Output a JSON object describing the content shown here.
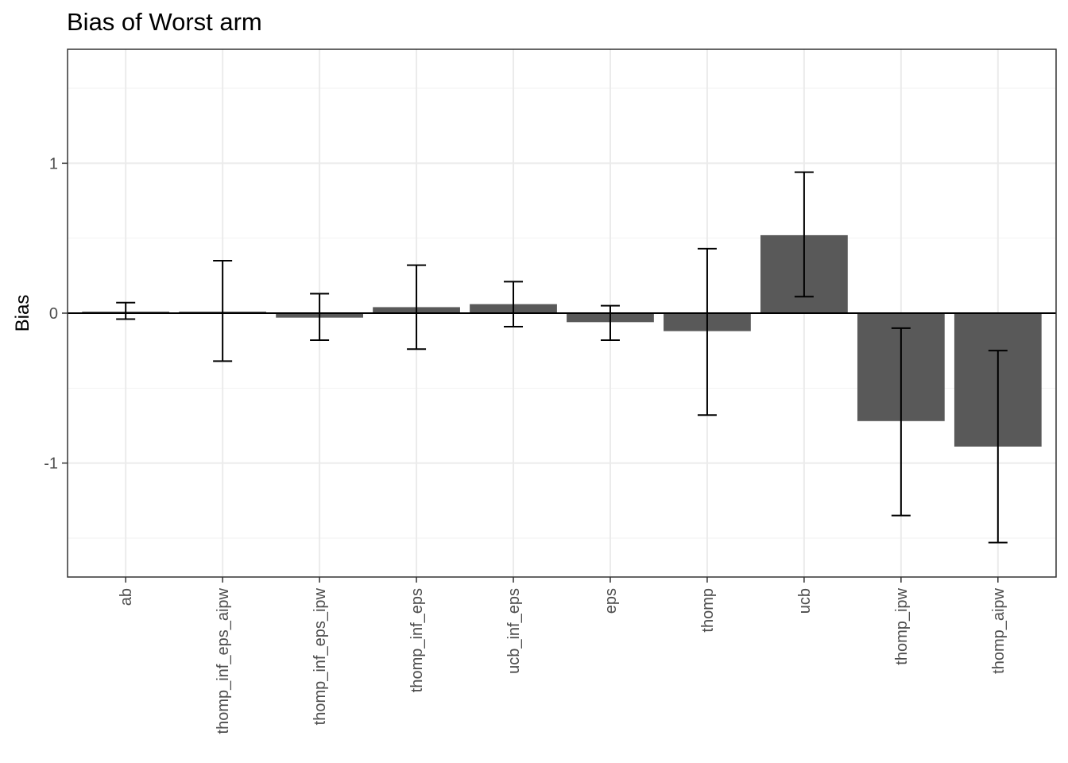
{
  "chart_data": {
    "type": "bar",
    "title": "Bias of Worst arm",
    "xlabel": "",
    "ylabel": "Bias",
    "ylim": [
      -1.76,
      1.76
    ],
    "yticks": [
      "-1",
      "0",
      "1"
    ],
    "ytick_values": [
      -1,
      0,
      1
    ],
    "grid": true,
    "categories": [
      "ab",
      "thomp_inf_eps_aipw",
      "thomp_inf_eps_ipw",
      "thomp_inf_eps",
      "ucb_inf_eps",
      "eps",
      "thomp",
      "ucb",
      "thomp_ipw",
      "thomp_aipw"
    ],
    "values": [
      0.01,
      0.01,
      -0.03,
      0.04,
      0.06,
      -0.06,
      -0.12,
      0.52,
      -0.72,
      -0.89
    ],
    "error_low": [
      -0.04,
      -0.32,
      -0.18,
      -0.24,
      -0.09,
      -0.18,
      -0.68,
      0.11,
      -1.35,
      -1.53
    ],
    "error_high": [
      0.07,
      0.35,
      0.13,
      0.32,
      0.21,
      0.05,
      0.43,
      0.94,
      -0.1,
      -0.25
    ],
    "bar_color": "#595959"
  }
}
